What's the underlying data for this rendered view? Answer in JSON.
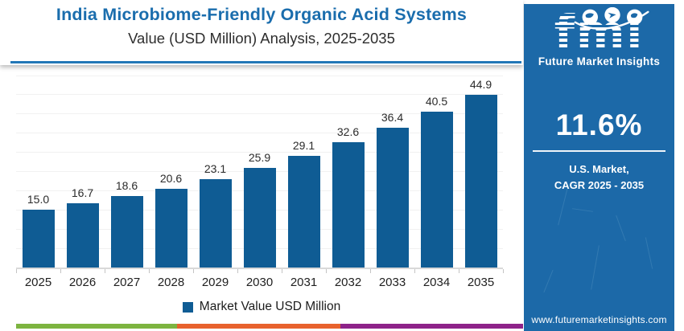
{
  "chart_data": {
    "type": "bar",
    "title": "India Microbiome-Friendly Organic Acid Systems",
    "subtitle": "Value (USD Million) Analysis, 2025-2035",
    "categories": [
      "2025",
      "2026",
      "2027",
      "2028",
      "2029",
      "2030",
      "2031",
      "2032",
      "2033",
      "2034",
      "2035"
    ],
    "series": [
      {
        "name": "Market Value USD Million",
        "values": [
          15.0,
          16.7,
          18.6,
          20.6,
          23.1,
          25.9,
          29.1,
          32.6,
          36.4,
          40.5,
          44.9
        ]
      }
    ],
    "ylim": [
      0,
      50
    ],
    "grid": "horizontal",
    "grid_step": 5,
    "value_labels": true,
    "value_label_decimals": 1,
    "legend_position": "bottom",
    "bar_color": "#0f5c94"
  },
  "legend": {
    "label": "Market Value USD Million",
    "swatch_color": "#0f5c94"
  },
  "sidebar": {
    "logo_text": "fmi",
    "logo_subtext": "Future Market Insights",
    "cagr_value": "11.6%",
    "market_line1": "U.S. Market,",
    "market_line2": "CAGR 2025 - 2035",
    "website": "www.futuremarketinsights.com",
    "background_color": "#1c69a8"
  },
  "footer_stripe_colors": [
    "#7db440",
    "#e8622d",
    "#8e2289"
  ],
  "theme": {
    "title_color": "#1a6dad",
    "accent_rule_color": "#2277b7",
    "bar_color": "#0f5c94",
    "gridline_color": "#f1f1f1"
  }
}
